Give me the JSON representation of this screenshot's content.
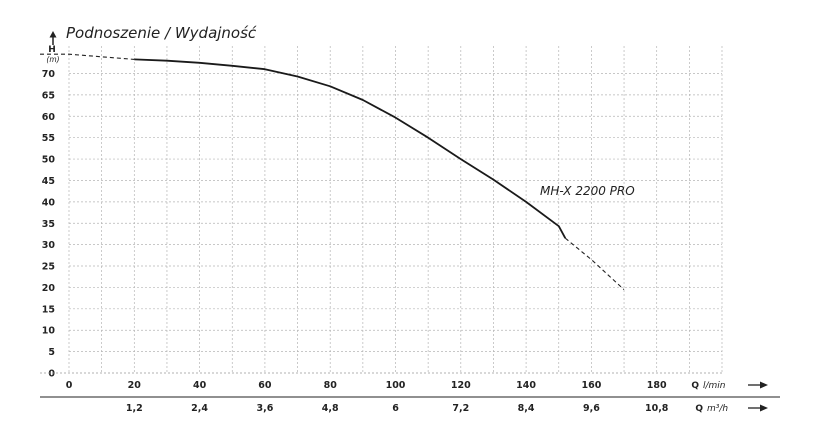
{
  "chart_data": {
    "type": "line",
    "title": "Podnoszenie / Wydajność",
    "ylabel": "H",
    "ylabel_unit": "(m)",
    "xlabel": "Q",
    "xlabel_unit": "l/min",
    "x2label": "Q",
    "x2label_unit": "m³/h",
    "xlim": [
      0,
      200
    ],
    "ylim": [
      0,
      75
    ],
    "yticks": [
      "0",
      "5",
      "10",
      "15",
      "20",
      "25",
      "30",
      "35",
      "40",
      "45",
      "50",
      "55",
      "60",
      "65",
      "70"
    ],
    "xticks": [
      "0",
      "20",
      "40",
      "60",
      "80",
      "100",
      "120",
      "140",
      "160",
      "180"
    ],
    "x2ticks": [
      "1,2",
      "2,4",
      "3,6",
      "4,8",
      "6",
      "7,2",
      "8,4",
      "9,6",
      "10,8"
    ],
    "grid": true,
    "series": [
      {
        "name": "MH-X 2200 PRO",
        "x": [
          0,
          20,
          30,
          40,
          50,
          60,
          70,
          80,
          90,
          100,
          110,
          120,
          130,
          140,
          150,
          152,
          160,
          170
        ],
        "y": [
          74.5,
          73.3,
          73.0,
          72.5,
          71.8,
          71.0,
          69.3,
          67.0,
          63.8,
          59.7,
          55.0,
          50.0,
          45.2,
          40.0,
          34.3,
          31.5,
          26.5,
          19.5
        ],
        "solid_range": [
          20,
          152
        ]
      }
    ]
  }
}
